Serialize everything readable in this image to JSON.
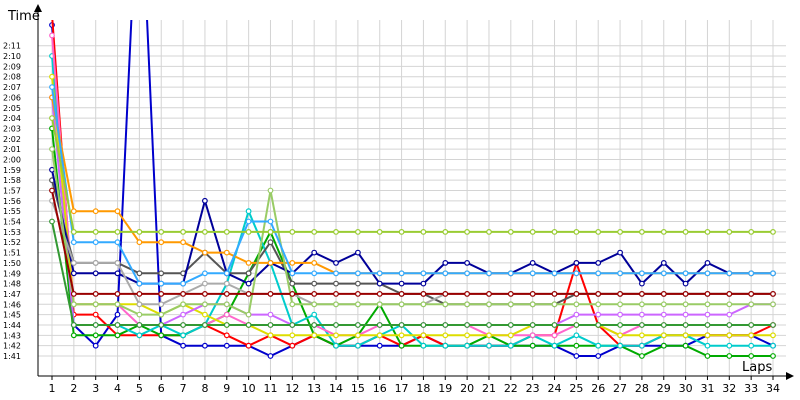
{
  "chart_data": {
    "type": "line",
    "ylabel": "Time",
    "xlabel": "Laps",
    "x": [
      1,
      2,
      3,
      4,
      5,
      6,
      7,
      8,
      9,
      10,
      11,
      12,
      13,
      14,
      15,
      16,
      17,
      18,
      19,
      20,
      21,
      22,
      23,
      24,
      25,
      26,
      27,
      28,
      29,
      30,
      31,
      32,
      33,
      34
    ],
    "xlim": [
      1,
      34
    ],
    "ylim": [
      101,
      132
    ],
    "y_tick_values": [
      101,
      102,
      103,
      104,
      105,
      106,
      107,
      108,
      109,
      110,
      111,
      112,
      113,
      114,
      115,
      116,
      117,
      118,
      119,
      120,
      121,
      122,
      123,
      124,
      125,
      126,
      127,
      128,
      129,
      130,
      131
    ],
    "y_tick_labels": [
      "1:41",
      "1:42",
      "1:43",
      "1:44",
      "1:45",
      "1:46",
      "1:47",
      "1:48",
      "1:49",
      "1:50",
      "1:51",
      "1:52",
      "1:53",
      "1:54",
      "1:55",
      "1:56",
      "1:57",
      "1:58",
      "1:59",
      "2:00",
      "2:01",
      "2:02",
      "2:03",
      "2:04",
      "2:05",
      "2:06",
      "2:07",
      "2:08",
      "2:09",
      "2:10",
      "2:11"
    ],
    "grid": true,
    "legend": "none",
    "series": [
      {
        "color": "#0000cc",
        "values": [
          133,
          104,
          102,
          105,
          150,
          103,
          102,
          102,
          102,
          102,
          101,
          102,
          103,
          102,
          102,
          102,
          102,
          103,
          102,
          102,
          102,
          102,
          102,
          102,
          101,
          101,
          102,
          102,
          102,
          102,
          103,
          103,
          103,
          102
        ]
      },
      {
        "color": "#ff0000",
        "values": [
          134,
          105,
          105,
          103,
          103,
          103,
          103,
          104,
          103,
          102,
          103,
          102,
          103,
          102,
          102,
          103,
          102,
          103,
          102,
          102,
          102,
          102,
          103,
          103,
          110,
          104,
          102,
          102,
          103,
          103,
          103,
          103,
          103,
          104
        ]
      },
      {
        "color": "#00aa00",
        "values": [
          123,
          103,
          103,
          103,
          104,
          103,
          103,
          104,
          105,
          109,
          113,
          108,
          103,
          102,
          103,
          106,
          102,
          102,
          102,
          102,
          103,
          102,
          102,
          102,
          102,
          102,
          102,
          101,
          102,
          102,
          101,
          101,
          101,
          101
        ]
      },
      {
        "color": "#00cccc",
        "values": [
          130,
          104,
          104,
          104,
          103,
          104,
          103,
          104,
          108,
          115,
          110,
          104,
          105,
          102,
          102,
          103,
          104,
          102,
          102,
          102,
          102,
          102,
          103,
          102,
          103,
          102,
          102,
          102,
          103,
          103,
          102,
          102,
          102,
          102
        ]
      },
      {
        "color": "#ff66cc",
        "values": [
          132,
          106,
          106,
          106,
          104,
          104,
          104,
          104,
          105,
          104,
          104,
          104,
          104,
          103,
          103,
          104,
          104,
          104,
          104,
          104,
          103,
          103,
          103,
          103,
          104,
          104,
          103,
          104,
          104,
          104,
          104,
          104,
          104,
          104
        ]
      },
      {
        "color": "#dddd00",
        "values": [
          128,
          106,
          106,
          106,
          106,
          105,
          106,
          105,
          104,
          104,
          103,
          103,
          103,
          103,
          103,
          103,
          103,
          103,
          103,
          103,
          103,
          103,
          104,
          104,
          104,
          104,
          103,
          103,
          103,
          103,
          103,
          103,
          103,
          103
        ]
      },
      {
        "color": "#cc66ff",
        "values": [
          126,
          104,
          104,
          104,
          104,
          104,
          105,
          106,
          106,
          105,
          105,
          104,
          104,
          104,
          104,
          104,
          104,
          104,
          104,
          104,
          104,
          104,
          104,
          104,
          105,
          105,
          105,
          105,
          105,
          105,
          105,
          105,
          106,
          106
        ]
      },
      {
        "color": "#555555",
        "values": [
          118,
          110,
          110,
          110,
          109,
          109,
          109,
          111,
          109,
          109,
          112,
          108,
          108,
          108,
          108,
          108,
          107,
          107,
          106,
          106,
          106,
          106,
          106,
          106,
          107,
          107,
          107,
          107,
          107,
          107,
          107,
          107,
          107,
          107
        ]
      },
      {
        "color": "#000099",
        "values": [
          119,
          109,
          109,
          109,
          108,
          108,
          108,
          116,
          109,
          108,
          110,
          109,
          111,
          110,
          111,
          108,
          108,
          108,
          110,
          110,
          109,
          109,
          110,
          109,
          110,
          110,
          111,
          108,
          110,
          108,
          110,
          109,
          109,
          109
        ]
      },
      {
        "color": "#aaaaaa",
        "values": [
          116,
          110,
          110,
          110,
          106,
          106,
          107,
          108,
          108,
          107,
          107,
          107,
          106,
          106,
          106,
          106,
          106,
          106,
          107,
          107,
          107,
          107,
          107,
          107,
          107,
          107,
          107,
          107,
          107,
          107,
          107,
          107,
          107,
          107
        ]
      },
      {
        "color": "#ff9900",
        "values": [
          126,
          115,
          115,
          115,
          112,
          112,
          112,
          111,
          111,
          110,
          110,
          110,
          110,
          109,
          109,
          109,
          109,
          109,
          109,
          109,
          109,
          109,
          109,
          109,
          109,
          109,
          109,
          109,
          109,
          109,
          109,
          109,
          109,
          109
        ]
      },
      {
        "color": "#99cc66",
        "values": [
          121,
          106,
          106,
          106,
          105,
          105,
          106,
          106,
          106,
          105,
          117,
          106,
          106,
          106,
          106,
          106,
          106,
          106,
          106,
          106,
          106,
          106,
          106,
          106,
          106,
          106,
          106,
          106,
          106,
          106,
          106,
          106,
          106,
          106
        ]
      },
      {
        "color": "#33aaff",
        "values": [
          127,
          112,
          112,
          112,
          108,
          108,
          108,
          109,
          109,
          114,
          114,
          109,
          109,
          109,
          109,
          109,
          109,
          109,
          109,
          109,
          109,
          109,
          109,
          109,
          109,
          109,
          109,
          109,
          109,
          109,
          109,
          109,
          109,
          109
        ]
      },
      {
        "color": "#99cc33",
        "values": [
          124,
          113,
          113,
          113,
          113,
          113,
          113,
          113,
          113,
          113,
          113,
          113,
          113,
          113,
          113,
          113,
          113,
          113,
          113,
          113,
          113,
          113,
          113,
          113,
          113,
          113,
          113,
          113,
          113,
          113,
          113,
          113,
          113,
          113
        ]
      },
      {
        "color": "#990000",
        "values": [
          117,
          107,
          107,
          107,
          107,
          107,
          107,
          107,
          107,
          107,
          107,
          107,
          107,
          107,
          107,
          107,
          107,
          107,
          107,
          107,
          107,
          107,
          107,
          107,
          107,
          107,
          107,
          107,
          107,
          107,
          107,
          107,
          107,
          107
        ]
      },
      {
        "color": "#339933",
        "values": [
          114,
          104,
          104,
          104,
          104,
          104,
          104,
          104,
          104,
          104,
          104,
          104,
          104,
          104,
          104,
          104,
          104,
          104,
          104,
          104,
          104,
          104,
          104,
          104,
          104,
          104,
          104,
          104,
          104,
          104,
          104,
          104,
          104,
          104
        ]
      }
    ]
  }
}
